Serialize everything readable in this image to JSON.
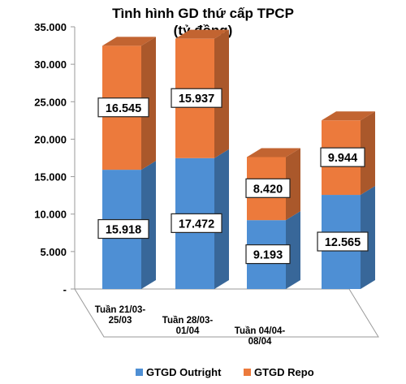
{
  "chart_data": {
    "type": "bar",
    "stacked": true,
    "style": "3d",
    "title": "Tình hình GD thứ cấp TPCP",
    "subtitle": "(tỷ đồng)",
    "categories": [
      [
        "Tuần 21/03-",
        "25/03"
      ],
      [
        "Tuần 28/03-",
        "01/04"
      ],
      [
        "Tuần 04/04-",
        "08/04"
      ],
      [
        "",
        ""
      ]
    ],
    "series": [
      {
        "name": "GTGD Outright",
        "color": "#4e8fd4",
        "values": [
          15918,
          17472,
          9193,
          12565
        ],
        "labels": [
          "15.918",
          "17.472",
          "9.193",
          "12.565"
        ]
      },
      {
        "name": "GTGD Repo",
        "color": "#ec7a3c",
        "values": [
          16545,
          15937,
          8420,
          9944
        ],
        "labels": [
          "16.545",
          "15.937",
          "8.420",
          "9.944"
        ]
      }
    ],
    "ylim": [
      0,
      35000
    ],
    "yticks": [
      "-",
      "5.000",
      "10.000",
      "15.000",
      "20.000",
      "25.000",
      "30.000",
      "35.000"
    ],
    "grid": false,
    "legend_position": "bottom"
  }
}
